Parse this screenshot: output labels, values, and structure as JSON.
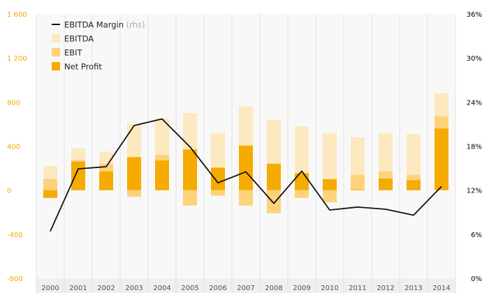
{
  "chart_data": {
    "type": "bar",
    "categories": [
      "2000",
      "2001",
      "2002",
      "2003",
      "2004",
      "2005",
      "2006",
      "2007",
      "2008",
      "2009",
      "2010",
      "2011",
      "2012",
      "2013",
      "2014"
    ],
    "series": [
      {
        "name": "EBITDA",
        "type": "bar",
        "axis": "left",
        "color": "#fde9c0",
        "values": [
          220,
          380,
          350,
          600,
          650,
          700,
          520,
          760,
          640,
          580,
          520,
          480,
          520,
          510,
          880
        ]
      },
      {
        "name": "EBIT",
        "type": "bar",
        "axis": "left",
        "color": "#fdd27a",
        "values": [
          100,
          270,
          240,
          -60,
          320,
          -140,
          -50,
          -140,
          -210,
          -70,
          -110,
          140,
          170,
          140,
          670
        ]
      },
      {
        "name": "Net Profit",
        "type": "bar",
        "axis": "left",
        "color": "#f5ab00",
        "values": [
          -70,
          260,
          170,
          300,
          270,
          370,
          205,
          405,
          240,
          155,
          100,
          5,
          105,
          90,
          560
        ]
      },
      {
        "name": "EBITDA Margin",
        "name_suffix": "(rhs)",
        "type": "line",
        "axis": "right",
        "color": "#111111",
        "values": [
          6.4,
          14.9,
          15.2,
          20.8,
          21.7,
          17.9,
          13.0,
          14.5,
          10.2,
          14.6,
          9.3,
          9.7,
          9.4,
          8.6,
          12.5
        ]
      }
    ],
    "y_left": {
      "min": -800,
      "max": 1600,
      "ticks": [
        -800,
        -400,
        0,
        400,
        800,
        1200,
        1600
      ],
      "tick_labels": [
        "-800",
        "-400",
        "0",
        "400",
        "800",
        "1 200",
        "1 600"
      ],
      "color": "#f2a900"
    },
    "y_right": {
      "min": 0,
      "max": 36,
      "ticks": [
        0,
        6,
        12,
        18,
        24,
        30,
        36
      ],
      "tick_labels": [
        "0%",
        "6%",
        "12%",
        "18%",
        "24%",
        "30%",
        "36%"
      ],
      "color": "#000000"
    },
    "legend": {
      "position": "top-left",
      "order": [
        "EBITDA Margin",
        "EBITDA",
        "EBIT",
        "Net Profit"
      ]
    },
    "grid": "vertical",
    "background": "#f8f8f8"
  }
}
